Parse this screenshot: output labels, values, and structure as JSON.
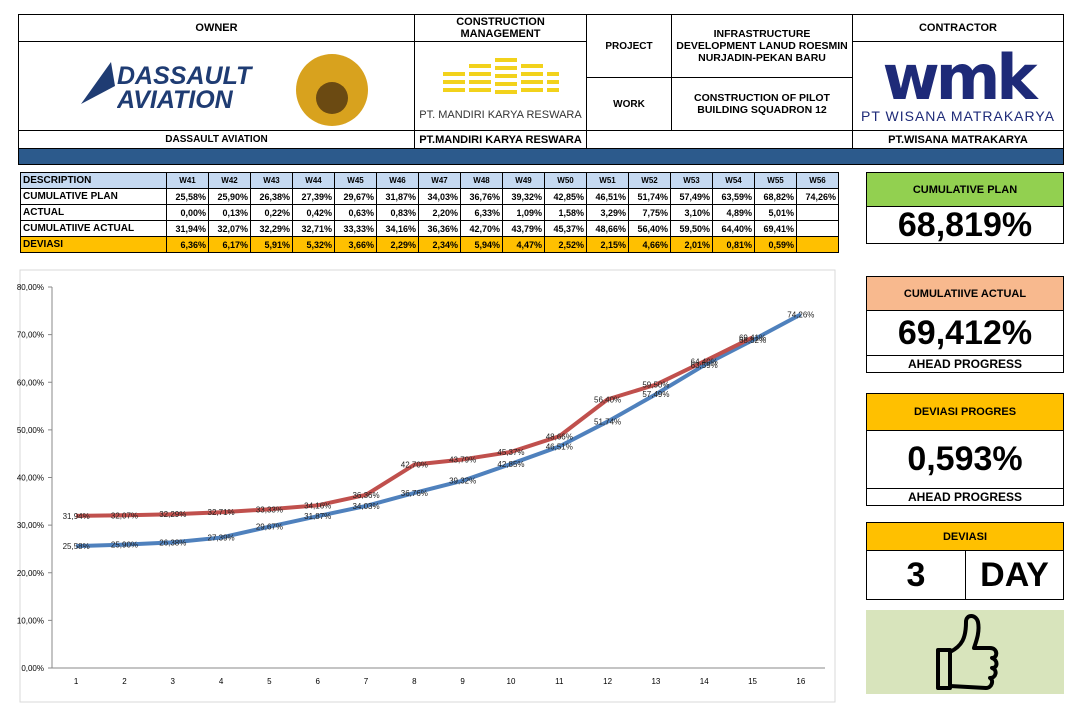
{
  "header": {
    "owner": "OWNER",
    "owner_logo": "DASSAULT AVIATION",
    "owner_name": "DASSAULT AVIATION",
    "cm": "CONSTRUCTION MANAGEMENT",
    "cm_logo": "PT. MANDIRI KARYA RESWARA",
    "cm_name": "PT.MANDIRI KARYA RESWARA",
    "project_label": "PROJECT",
    "project": "INFRASTRUCTURE DEVELOPMENT LANUD ROESMIN NURJADIN-PEKAN BARU",
    "work_label": "WORK",
    "work": "CONSTRUCTION OF PILOT BUILDING SQUADRON 12",
    "contractor": "CONTRACTOR",
    "contractor_logo": "wmk",
    "contractor_logo_name": "PT WISANA MATRAKARYA",
    "contractor_name": "PT.WISANA MATRAKARYA"
  },
  "table": {
    "header": [
      "DESCRIPTION",
      "W41",
      "W42",
      "W43",
      "W44",
      "W45",
      "W46",
      "W47",
      "W48",
      "W49",
      "W50",
      "W51",
      "W52",
      "W53",
      "W54",
      "W55",
      "W56"
    ],
    "rows": [
      {
        "label": "CUMULATIVE PLAN",
        "cells": [
          "25,58%",
          "25,90%",
          "26,38%",
          "27,39%",
          "29,67%",
          "31,87%",
          "34,03%",
          "36,76%",
          "39,32%",
          "42,85%",
          "46,51%",
          "51,74%",
          "57,49%",
          "63,59%",
          "68,82%",
          "74,26%"
        ]
      },
      {
        "label": "ACTUAL",
        "cells": [
          "0,00%",
          "0,13%",
          "0,22%",
          "0,42%",
          "0,63%",
          "0,83%",
          "2,20%",
          "6,33%",
          "1,09%",
          "1,58%",
          "3,29%",
          "7,75%",
          "3,10%",
          "4,89%",
          "5,01%",
          null
        ]
      },
      {
        "label": "CUMULATIIVE ACTUAL",
        "cells": [
          "31,94%",
          "32,07%",
          "32,29%",
          "32,71%",
          "33,33%",
          "34,16%",
          "36,36%",
          "42,70%",
          "43,79%",
          "45,37%",
          "48,66%",
          "56,40%",
          "59,50%",
          "64,40%",
          "69,41%",
          null
        ]
      },
      {
        "label": "DEVIASI",
        "cells": [
          "6,36%",
          "6,17%",
          "5,91%",
          "5,32%",
          "3,66%",
          "2,29%",
          "2,34%",
          "5,94%",
          "4,47%",
          "2,52%",
          "2,15%",
          "4,66%",
          "2,01%",
          "0,81%",
          "0,59%",
          null
        ]
      }
    ]
  },
  "chart_data": {
    "type": "line",
    "x": [
      1,
      2,
      3,
      4,
      5,
      6,
      7,
      8,
      9,
      10,
      11,
      12,
      13,
      14,
      15,
      16
    ],
    "xlim": [
      0.5,
      16.5
    ],
    "ylim": [
      0,
      80
    ],
    "yticks": [
      {
        "value": 0,
        "label": "0,00%"
      },
      {
        "value": 10,
        "label": "10,00%"
      },
      {
        "value": 20,
        "label": "20,00%"
      },
      {
        "value": 30,
        "label": "30,00%"
      },
      {
        "value": 40,
        "label": "40,00%"
      },
      {
        "value": 50,
        "label": "50,00%"
      },
      {
        "value": 60,
        "label": "60,00%"
      },
      {
        "value": 70,
        "label": "70,00%"
      },
      {
        "value": 80,
        "label": "80,00%"
      }
    ],
    "series": [
      {
        "color": "#4f81bd",
        "values": [
          25.58,
          25.9,
          26.38,
          27.39,
          29.67,
          31.87,
          34.03,
          36.76,
          39.32,
          42.85,
          46.51,
          51.74,
          57.49,
          63.59,
          68.82,
          74.26
        ],
        "value_labels": [
          "25,58%",
          "25,90%",
          "26,38%",
          "27,39%",
          "29,67%",
          "31,87%",
          "34,03%",
          "36,76%",
          "39,32%",
          "42,85%",
          "46,51%",
          "51,74%",
          "57,49%",
          "63,59%",
          "68,82%",
          "74,26%"
        ]
      },
      {
        "color": "#c0504d",
        "values": [
          31.94,
          32.07,
          32.29,
          32.71,
          33.33,
          34.16,
          36.36,
          42.7,
          43.79,
          45.37,
          48.66,
          56.4,
          59.5,
          64.4,
          69.41,
          null
        ],
        "value_labels": [
          "31,94%",
          "32,07%",
          "32,29%",
          "32,71%",
          "33,33%",
          "34,16%",
          "36,36%",
          "42,70%",
          "43,79%",
          "45,37%",
          "48,66%",
          "56,40%",
          "59,50%",
          "64,40%",
          "69,41%",
          null
        ]
      }
    ]
  },
  "panels": {
    "plan_title": "CUMULATIVE PLAN",
    "plan_value": "68,819%",
    "actual_title": "CUMULATIIVE ACTUAL",
    "actual_value": "69,412%",
    "actual_note": "AHEAD PROGRESS",
    "dev_title": "DEVIASI PROGRES",
    "dev_value": "0,593%",
    "dev_note": "AHEAD PROGRESS",
    "day_title": "DEVIASI",
    "day_value": "3",
    "day_unit": "DAY"
  }
}
